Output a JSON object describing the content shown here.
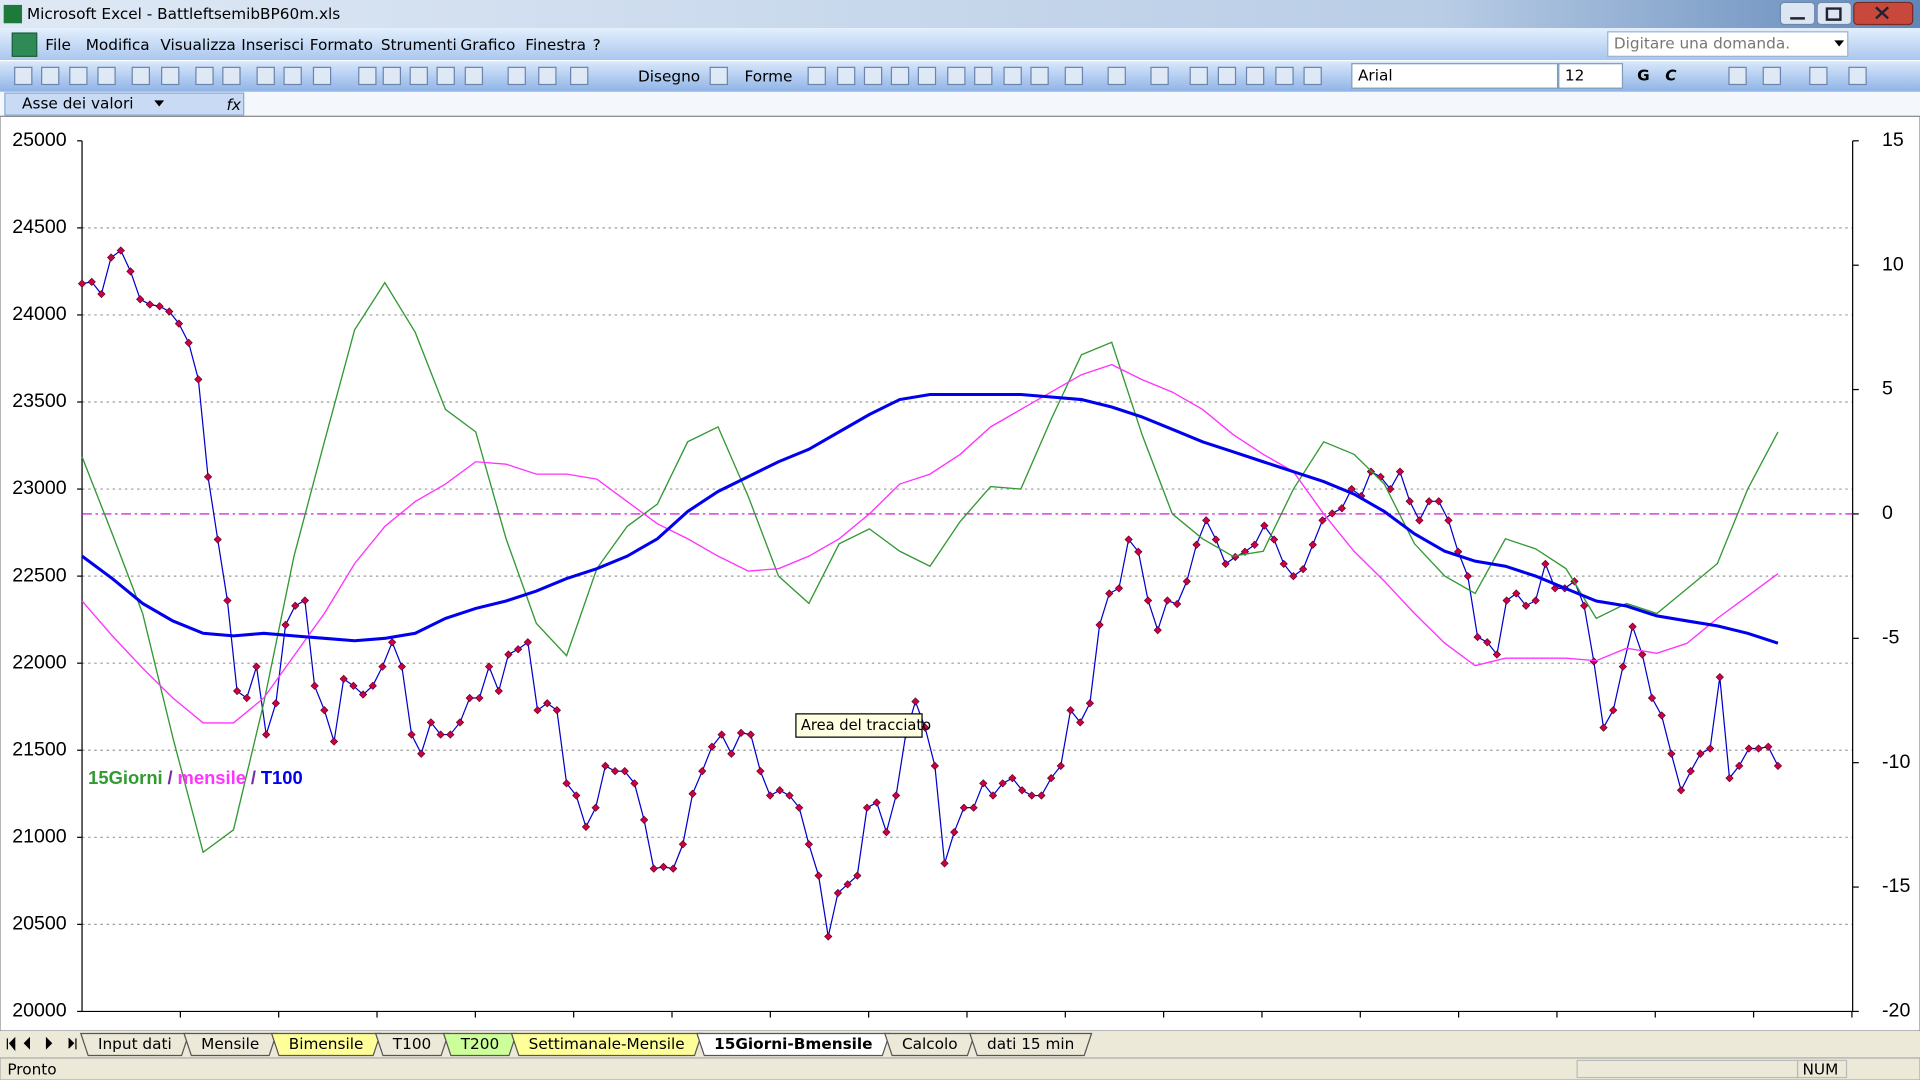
{
  "window": {
    "title": "Microsoft Excel - BattleftsemibBP60m.xls"
  },
  "menu": [
    "File",
    "Modifica",
    "Visualizza",
    "Inserisci",
    "Formato",
    "Strumenti",
    "Grafico",
    "Finestra",
    "?"
  ],
  "search_placeholder": "Digitare una domanda.",
  "toolbar": {
    "draw": "Disegno",
    "shapes": "Forme",
    "font": "Arial",
    "font_size": "12",
    "bold": "G",
    "italic": "C"
  },
  "name_box": "Asse dei valori",
  "tooltip": "Area del tracciato",
  "sheet_tabs": [
    {
      "label": "Input dati"
    },
    {
      "label": "Mensile"
    },
    {
      "label": "Bimensile",
      "color": "#ffff99"
    },
    {
      "label": "T100"
    },
    {
      "label": "T200",
      "color": "#ccff99"
    },
    {
      "label": "Settimanale-Mensile",
      "color": "#ffff99"
    },
    {
      "label": "15Giorni-Bmensile",
      "active": true
    },
    {
      "label": "Calcolo"
    },
    {
      "label": "dati 15 min"
    }
  ],
  "status": {
    "left": "Pronto",
    "right": "NUM"
  },
  "chart_data": {
    "type": "line",
    "ylim": [
      20000,
      25000
    ],
    "yticks": [
      20000,
      20500,
      21000,
      21500,
      22000,
      22500,
      23000,
      23500,
      24000,
      24500,
      25000
    ],
    "y2lim": [
      -20,
      15
    ],
    "y2ticks": [
      -20,
      -15,
      -10,
      -5,
      0,
      5,
      10,
      15
    ],
    "grid": true,
    "reference_line": {
      "value": 0,
      "axis": "y2",
      "color": "#cc00cc"
    },
    "legend_separator": "/",
    "series": [
      {
        "color": "#0000cc",
        "marker_color": "#cc0044",
        "values": [
          24180,
          24190,
          24120,
          24330,
          24370,
          24250,
          24090,
          24060,
          24050,
          24020,
          23950,
          23840,
          23630,
          23070,
          22710,
          22360,
          21840,
          21800,
          21980,
          21590,
          21770,
          22220,
          22330,
          22360,
          21870,
          21730,
          21550,
          21910,
          21870,
          21820,
          21870,
          21980,
          22120,
          21980,
          21590,
          21480,
          21660,
          21590,
          21590,
          21660,
          21800,
          21800,
          21980,
          21840,
          22050,
          22080,
          22120,
          21730,
          21770,
          21730,
          21310,
          21240,
          21060,
          21170,
          21410,
          21380,
          21380,
          21310,
          21100,
          20820,
          20830,
          20820,
          20960,
          21250,
          21380,
          21520,
          21590,
          21480,
          21600,
          21590,
          21380,
          21240,
          21270,
          21240,
          21170,
          20960,
          20780,
          20430,
          20680,
          20730,
          20780,
          21170,
          21200,
          21030,
          21240,
          21590,
          21780,
          21630,
          21410,
          20850,
          21030,
          21170,
          21170,
          21310,
          21240,
          21310,
          21340,
          21270,
          21240,
          21240,
          21340,
          21410,
          21730,
          21660,
          21770,
          22220,
          22400,
          22430,
          22710,
          22640,
          22360,
          22190,
          22360,
          22340,
          22470,
          22680,
          22820,
          22710,
          22570,
          22610,
          22640,
          22680,
          22790,
          22710,
          22570,
          22500,
          22540,
          22680,
          22820,
          22860,
          22890,
          23000,
          22960,
          23100,
          23070,
          23000,
          23100,
          22930,
          22820,
          22930,
          22930,
          22820,
          22640,
          22500,
          22150,
          22120,
          22050,
          22360,
          22400,
          22330,
          22360,
          22570,
          22430,
          22430,
          22470,
          22330,
          22010,
          21630,
          21730,
          21980,
          22210,
          22050,
          21800,
          21700,
          21480,
          21270,
          21380,
          21480,
          21510,
          21920,
          21340,
          21410,
          21510,
          21510,
          21520,
          21410
        ]
      },
      {
        "name": "15Giorni",
        "color": "#339933",
        "axis": "y2",
        "values": [
          2.3,
          -0.8,
          -4.0,
          -9.0,
          -13.6,
          -12.7,
          -7.6,
          -1.7,
          2.9,
          7.4,
          9.3,
          7.3,
          4.2,
          3.3,
          -1.0,
          -4.4,
          -5.7,
          -2.2,
          -0.5,
          0.4,
          2.9,
          3.5,
          0.7,
          -2.5,
          -3.6,
          -1.2,
          -0.6,
          -1.5,
          -2.1,
          -0.3,
          1.1,
          1.0,
          3.8,
          6.4,
          6.9,
          3.2,
          0.0,
          -1.0,
          -1.7,
          -1.5,
          1.0,
          2.9,
          2.4,
          1.2,
          -1.2,
          -2.5,
          -3.2,
          -1.0,
          -1.4,
          -2.2,
          -4.2,
          -3.6,
          -4.0,
          -3.0,
          -2.0,
          1.0,
          3.3
        ]
      },
      {
        "name": "mensile",
        "color": "#ff33ff",
        "axis": "y2",
        "values": [
          -3.5,
          -4.9,
          -6.2,
          -7.4,
          -8.4,
          -8.4,
          -7.4,
          -5.7,
          -4.0,
          -2.0,
          -0.5,
          0.5,
          1.2,
          2.1,
          2.0,
          1.6,
          1.6,
          1.4,
          0.5,
          -0.4,
          -1.0,
          -1.7,
          -2.3,
          -2.2,
          -1.7,
          -1.0,
          0.0,
          1.2,
          1.6,
          2.4,
          3.5,
          4.2,
          4.9,
          5.6,
          6.0,
          5.4,
          4.9,
          4.2,
          3.2,
          2.4,
          1.7,
          0.0,
          -1.5,
          -2.7,
          -4.0,
          -5.2,
          -6.1,
          -5.8,
          -5.8,
          -5.8,
          -5.9,
          -5.4,
          -5.6,
          -5.2,
          -4.2,
          -3.3,
          -2.4
        ]
      },
      {
        "name": "T100",
        "color": "#0000ee",
        "axis": "y2",
        "values": [
          -1.7,
          -2.6,
          -3.6,
          -4.3,
          -4.8,
          -4.9,
          -4.8,
          -4.9,
          -5.0,
          -5.1,
          -5.0,
          -4.8,
          -4.2,
          -3.8,
          -3.5,
          -3.1,
          -2.6,
          -2.2,
          -1.7,
          -1.0,
          0.1,
          0.9,
          1.5,
          2.1,
          2.6,
          3.3,
          4.0,
          4.6,
          4.8,
          4.8,
          4.8,
          4.8,
          4.7,
          4.6,
          4.3,
          3.9,
          3.4,
          2.9,
          2.5,
          2.1,
          1.7,
          1.3,
          0.8,
          0.1,
          -0.8,
          -1.5,
          -1.9,
          -2.1,
          -2.5,
          -3.0,
          -3.5,
          -3.7,
          -4.1,
          -4.3,
          -4.5,
          -4.8,
          -5.2
        ]
      }
    ]
  }
}
